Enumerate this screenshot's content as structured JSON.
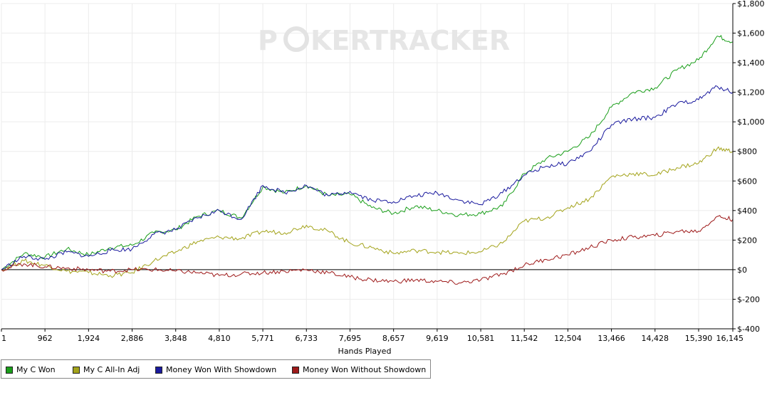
{
  "watermark": {
    "text_left": "P",
    "text_right": "KERTRACKER"
  },
  "chart_data": {
    "type": "line",
    "xlabel": "Hands Played",
    "xlim": [
      1,
      16145
    ],
    "ylim": [
      -400,
      1800
    ],
    "grid": true,
    "legend_position": "bottom-left",
    "x_ticks": [
      1,
      962,
      1924,
      2886,
      3848,
      4810,
      5771,
      6733,
      7695,
      8657,
      9619,
      10581,
      11542,
      12504,
      13466,
      14428,
      15390,
      16145
    ],
    "x_tick_labels": [
      "1",
      "962",
      "1,924",
      "2,886",
      "3,848",
      "4,810",
      "5,771",
      "6,733",
      "7,695",
      "8,657",
      "9,619",
      "10,581",
      "11,542",
      "12,504",
      "13,466",
      "14,428",
      "15,390",
      "16,145"
    ],
    "y_ticks": [
      -400,
      -200,
      0,
      200,
      400,
      600,
      800,
      1000,
      1200,
      1400,
      1600,
      1800
    ],
    "y_tick_labels": [
      "$-400",
      "$-200",
      "$0",
      "$200",
      "$400",
      "$600",
      "$800",
      "$1,000",
      "$1,200",
      "$1,400",
      "$1,600",
      "$1,800"
    ],
    "x": [
      1,
      500,
      962,
      1443,
      1924,
      2405,
      2886,
      3367,
      3848,
      4329,
      4810,
      5290,
      5771,
      6252,
      6733,
      7214,
      7695,
      8176,
      8657,
      9138,
      9619,
      10100,
      10581,
      11061,
      11542,
      12023,
      12504,
      12985,
      13466,
      13947,
      14428,
      14909,
      15390,
      15800,
      16145
    ],
    "series": [
      {
        "name": "My C Won",
        "color": "#1a9e1a",
        "values": [
          0,
          110,
          85,
          140,
          100,
          150,
          165,
          250,
          270,
          360,
          400,
          350,
          560,
          520,
          570,
          500,
          510,
          420,
          380,
          430,
          400,
          370,
          380,
          430,
          650,
          750,
          800,
          900,
          1100,
          1200,
          1230,
          1350,
          1420,
          1580,
          1540
        ]
      },
      {
        "name": "My C All-In Adj",
        "color": "#a3a31a",
        "values": [
          0,
          60,
          30,
          -10,
          -20,
          -40,
          -20,
          60,
          120,
          190,
          220,
          210,
          260,
          250,
          300,
          260,
          180,
          150,
          110,
          130,
          120,
          110,
          120,
          180,
          330,
          350,
          420,
          480,
          630,
          650,
          640,
          690,
          720,
          820,
          800
        ]
      },
      {
        "name": "Money Won With Showdown",
        "color": "#1a1a9e",
        "values": [
          0,
          90,
          70,
          120,
          90,
          130,
          140,
          240,
          270,
          350,
          400,
          340,
          570,
          520,
          570,
          500,
          530,
          470,
          460,
          500,
          520,
          470,
          440,
          520,
          640,
          700,
          720,
          800,
          980,
          1020,
          1030,
          1120,
          1150,
          1240,
          1200
        ]
      },
      {
        "name": "Money Won Without Showdown",
        "color": "#9e1a1a",
        "values": [
          0,
          40,
          20,
          10,
          0,
          -10,
          0,
          0,
          -10,
          -20,
          -40,
          -30,
          -20,
          -10,
          0,
          -20,
          -50,
          -70,
          -80,
          -70,
          -80,
          -90,
          -70,
          -30,
          30,
          70,
          100,
          150,
          200,
          220,
          230,
          260,
          260,
          360,
          340
        ]
      }
    ]
  }
}
